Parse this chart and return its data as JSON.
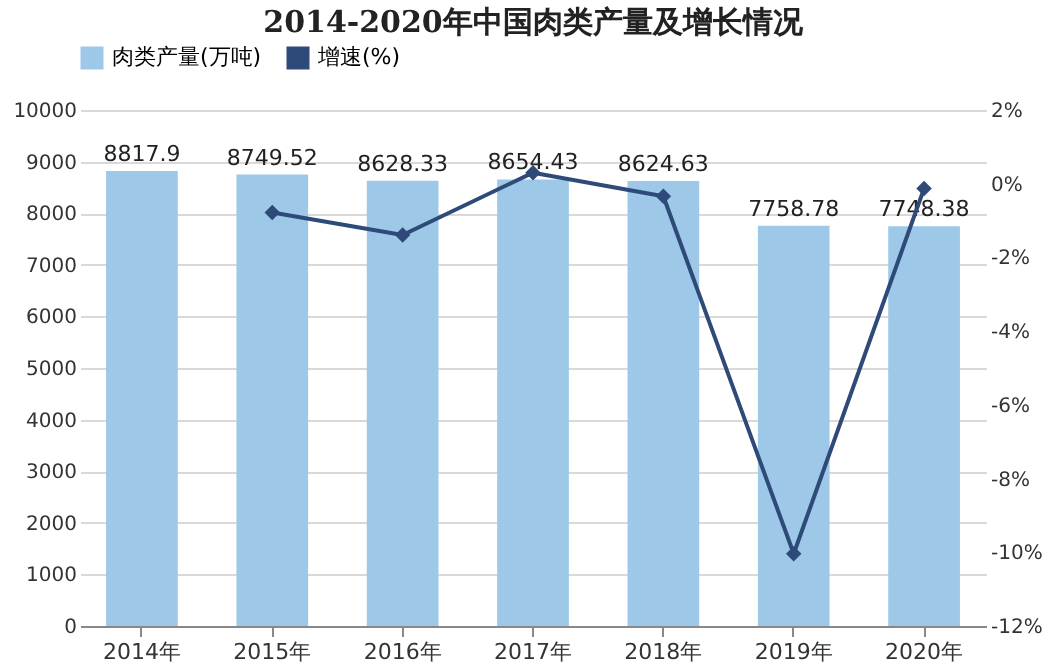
{
  "chart_data": {
    "type": "bar",
    "title": "2014-2020年中国肉类产量及增长情况",
    "categories": [
      "2014年",
      "2015年",
      "2016年",
      "2017年",
      "2018年",
      "2019年",
      "2020年"
    ],
    "series": [
      {
        "name": "肉类产量(万吨)",
        "color": "#9dc8e8",
        "values": [
          8817.9,
          8749.52,
          8628.33,
          8654.43,
          8624.63,
          7758.78,
          7748.38
        ],
        "value_labels": [
          "8817.9",
          "8749.52",
          "8628.33",
          "8654.43",
          "8624.63",
          "7758.78",
          "7748.38"
        ]
      },
      {
        "name": "增速(%)",
        "type": "line",
        "axis": "y2",
        "color": "#2e4a78",
        "values": [
          null,
          -0.78,
          -1.39,
          0.3,
          -0.34,
          -10.04,
          -0.13
        ]
      }
    ],
    "ylim": [
      0,
      10000
    ],
    "yticks": [
      0,
      1000,
      2000,
      3000,
      4000,
      5000,
      6000,
      7000,
      8000,
      9000,
      10000
    ],
    "y2lim": [
      -12,
      2
    ],
    "y2ticks": [
      {
        "value": -12,
        "label": "-12%"
      },
      {
        "value": -10,
        "label": "-10%"
      },
      {
        "value": -8,
        "label": "-8%"
      },
      {
        "value": -6,
        "label": "-6%"
      },
      {
        "value": -4,
        "label": "-4%"
      },
      {
        "value": -2,
        "label": "-2%"
      },
      {
        "value": 0,
        "label": "0%"
      },
      {
        "value": 2,
        "label": "2%"
      }
    ],
    "grid": "y",
    "legend": "top",
    "marker": "diamond"
  }
}
